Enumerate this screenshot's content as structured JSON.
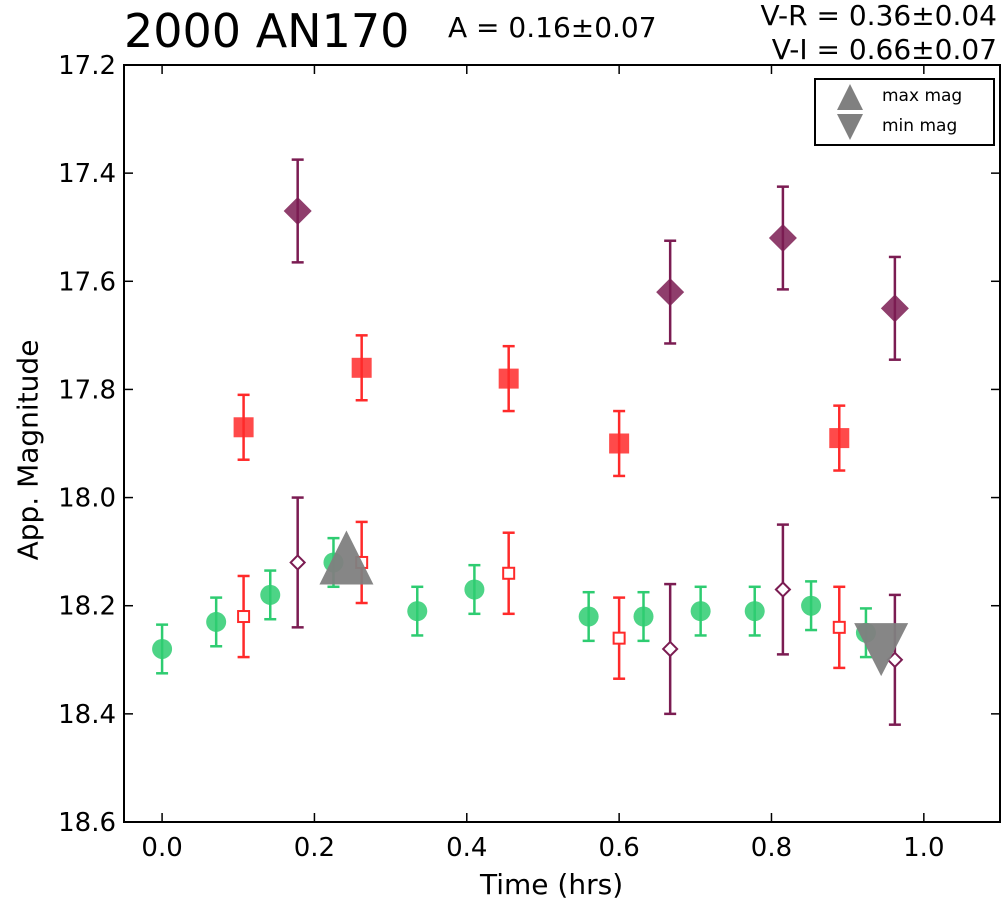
{
  "header": {
    "title": "2000 AN170",
    "amplitude": "A  = 0.16±0.07",
    "v_r": "V-R = 0.36±0.04",
    "v_i": "V-I  = 0.66±0.07"
  },
  "colors": {
    "V": "#2ecc71",
    "R": "#ff2a2a",
    "I": "#7b1c52",
    "marker": "#808080",
    "axis": "#000000"
  },
  "chart_data": {
    "type": "scatter",
    "xlabel": "Time (hrs)",
    "ylabel": "App. Magnitude",
    "xlim": [
      -0.05,
      1.1
    ],
    "ylim": [
      18.6,
      17.2
    ],
    "y_inverted": true,
    "xticks": [
      "0.0",
      "0.2",
      "0.4",
      "0.6",
      "0.8",
      "1.0"
    ],
    "yticks": [
      "17.2",
      "17.4",
      "17.6",
      "17.8",
      "18.0",
      "18.2",
      "18.4",
      "18.6"
    ],
    "grid": false,
    "legend": {
      "position": "top-right",
      "entries": [
        {
          "label": "max mag",
          "marker": "triangle-up"
        },
        {
          "label": "min mag",
          "marker": "triangle-down"
        }
      ]
    },
    "series": [
      {
        "band": "V",
        "marker": "circle",
        "x": [
          0.0,
          0.071,
          0.142,
          0.225,
          0.335,
          0.41,
          0.56,
          0.632,
          0.707,
          0.778,
          0.852,
          0.924
        ],
        "y": [
          18.28,
          18.23,
          18.18,
          18.12,
          18.21,
          18.17,
          18.22,
          18.22,
          18.21,
          18.21,
          18.2,
          18.25
        ],
        "err": [
          0.045,
          0.045,
          0.045,
          0.045,
          0.045,
          0.045,
          0.045,
          0.045,
          0.045,
          0.045,
          0.045,
          0.045
        ]
      },
      {
        "band": "R",
        "marker": "square",
        "x": [
          0.107,
          0.262,
          0.455,
          0.6,
          0.889
        ],
        "y": [
          17.87,
          17.76,
          17.78,
          17.9,
          17.89
        ],
        "err": [
          0.06,
          0.06,
          0.06,
          0.06,
          0.06
        ]
      },
      {
        "band": "R",
        "marker": "square-open",
        "x": [
          0.107,
          0.262,
          0.455,
          0.6,
          0.889
        ],
        "y": [
          18.22,
          18.12,
          18.14,
          18.26,
          18.24
        ],
        "err": [
          0.075,
          0.075,
          0.075,
          0.075,
          0.075
        ]
      },
      {
        "band": "I",
        "marker": "diamond",
        "x": [
          0.178,
          0.667,
          0.815,
          0.962
        ],
        "y": [
          17.47,
          17.62,
          17.52,
          17.65
        ],
        "err": [
          0.095,
          0.095,
          0.095,
          0.095
        ]
      },
      {
        "band": "I",
        "marker": "diamond-open",
        "x": [
          0.178,
          0.667,
          0.815,
          0.962
        ],
        "y": [
          18.12,
          18.28,
          18.17,
          18.3
        ],
        "err": [
          0.12,
          0.12,
          0.12,
          0.12
        ]
      }
    ],
    "extrema": [
      {
        "type": "max",
        "x": 0.242,
        "y": 18.12
      },
      {
        "type": "min",
        "x": 0.944,
        "y": 18.26
      }
    ]
  }
}
